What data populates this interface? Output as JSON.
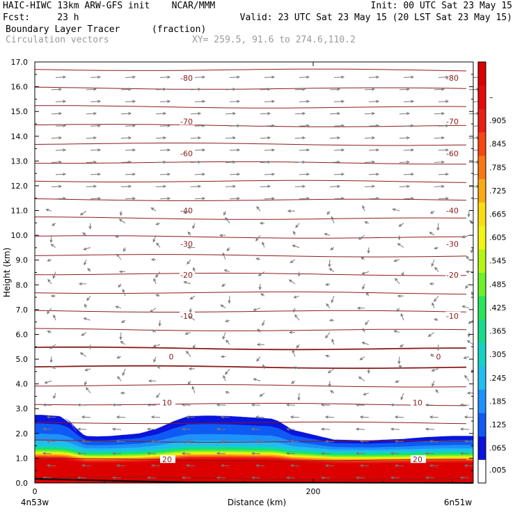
{
  "header": {
    "line1_left": "HAIC-HIWC 13km ARW-GFS init    NCAR/MMM",
    "line1_right": "Init: 00 UTC Sat 23 May 15",
    "line2_left": "Fcst:     23 h",
    "line2_right": "Valid: 23 UTC Sat 23 May 15 (20 LST Sat 23 May 15)",
    "line3_left": "Boundary Layer Tracer",
    "line3_units": "(fraction)",
    "line4_left": "Circulation vectors",
    "line4_xy": "XY= 259.5, 91.6 to 274.6,110.2"
  },
  "chart_data": {
    "type": "heatmap",
    "title": "Boundary Layer Tracer",
    "units": "(fraction)",
    "overlay": "Circulation vectors",
    "xlabel": "Distance (km)",
    "ylabel": "Height (km)",
    "xlim": [
      0,
      315
    ],
    "ylim": [
      0,
      17
    ],
    "x_ticks": [
      0,
      200
    ],
    "x_tick_labels": [
      "0",
      "200"
    ],
    "x_end_labels": [
      "4n53w",
      "6n51w"
    ],
    "y_ticks": [
      "0.0",
      "1.0",
      "2.0",
      "3.0",
      "4.0",
      "5.0",
      "6.0",
      "7.0",
      "8.0",
      "9.0",
      "10.0",
      "11.0",
      "12.0",
      "13.0",
      "14.0",
      "15.0",
      "16.0",
      "17.0"
    ],
    "colorbar_labels": [
      ".005",
      ".065",
      ".125",
      ".185",
      ".245",
      ".305",
      ".365",
      ".425",
      ".485",
      ".545",
      ".605",
      ".665",
      ".725",
      ".785",
      ".845",
      ".905",
      "–"
    ],
    "colorbar_colors": [
      "#ffffff",
      "#0a14dc",
      "#0f5af5",
      "#1e91fa",
      "#1ebef0",
      "#14d2c8",
      "#14dc8c",
      "#28e65a",
      "#6ef028",
      "#b4f514",
      "#f0f514",
      "#fadc14",
      "#faaa14",
      "#fa7814",
      "#f54614",
      "#eb1e14",
      "#e60a0a",
      "#dc0000"
    ],
    "bl_tracer_top_km": [
      [
        0,
        2.75
      ],
      [
        5,
        2.75
      ],
      [
        12,
        2.72
      ],
      [
        18,
        2.7
      ],
      [
        24,
        2.55
      ],
      [
        30,
        2.2
      ],
      [
        36,
        1.9
      ],
      [
        45,
        1.88
      ],
      [
        55,
        1.9
      ],
      [
        65,
        1.95
      ],
      [
        75,
        2.0
      ],
      [
        88,
        2.2
      ],
      [
        100,
        2.5
      ],
      [
        110,
        2.7
      ],
      [
        125,
        2.72
      ],
      [
        140,
        2.7
      ],
      [
        155,
        2.65
      ],
      [
        170,
        2.6
      ],
      [
        175,
        2.5
      ],
      [
        185,
        2.15
      ],
      [
        200,
        1.95
      ],
      [
        215,
        1.75
      ],
      [
        240,
        1.72
      ],
      [
        265,
        1.78
      ],
      [
        280,
        1.85
      ],
      [
        300,
        1.9
      ],
      [
        315,
        1.9
      ]
    ],
    "isotherm_labels_degC": [
      {
        "value": "-80",
        "height_km": 16.35
      },
      {
        "value": "-70",
        "height_km": 14.6
      },
      {
        "value": "-60",
        "height_km": 13.3
      },
      {
        "value": "-40",
        "height_km": 11.0
      },
      {
        "value": "-30",
        "height_km": 9.65
      },
      {
        "value": "-20",
        "height_km": 8.4
      },
      {
        "value": "-10",
        "height_km": 6.75
      },
      {
        "value": "0",
        "height_km": 5.1
      },
      {
        "value": "10",
        "height_km": 3.25
      },
      {
        "value": "20",
        "height_km": 0.95
      }
    ],
    "colors": {
      "isotherm": "#8b1a1a",
      "vector": "#777777",
      "frame": "#000000"
    }
  }
}
